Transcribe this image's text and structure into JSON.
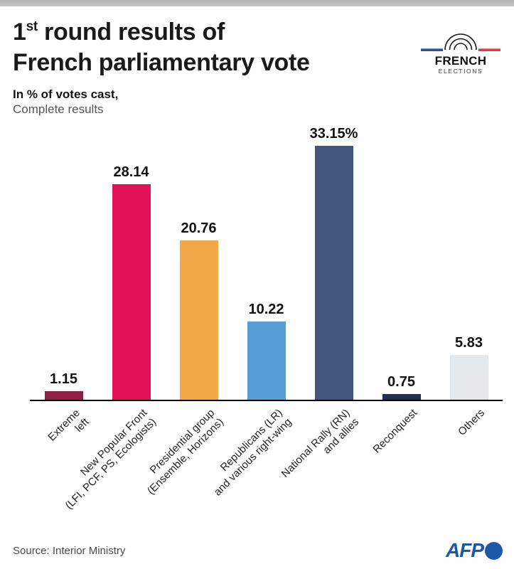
{
  "page": {
    "background": "#ffffff",
    "top_strip_color": "#b9b9b9"
  },
  "header": {
    "title_number": "1",
    "title_ordinal_suffix": "st",
    "title_line1_rest": " round results of",
    "title_line2": "French parliamentary vote",
    "subtitle_bold": "In % of votes cast,",
    "subtitle_regular": "Complete results"
  },
  "logo": {
    "line1": "FRENCH",
    "line2": "ELECTIONS",
    "arc_color": "#1a1a1a",
    "flag_blue": "#2d4f9e",
    "flag_red": "#e0394a"
  },
  "chart_data": {
    "type": "bar",
    "title": "1st round results of French parliamentary vote",
    "subtitle": "In % of votes cast, Complete results",
    "xlabel": "",
    "ylabel": "% of votes cast",
    "ylim": [
      0,
      35
    ],
    "grid": false,
    "legend": "none",
    "categories": [
      "Extreme left",
      "New Popular Front (LFI, PCF, PS, Ecologists)",
      "Presidential group (Ensemble, Horizons)",
      "Republicans (LR) and various right-wing",
      "National Rally (RN) and allies",
      "Reconquest",
      "Others"
    ],
    "category_lines": [
      [
        "Extreme",
        "left"
      ],
      [
        "New Popular Front",
        "(LFI, PCF, PS, Ecologists)"
      ],
      [
        "Presidential group",
        "(Ensemble, Horizons)"
      ],
      [
        "Republicans (LR)",
        "and various right-wing"
      ],
      [
        "National Rally (RN)",
        "and allies"
      ],
      [
        "Reconquest"
      ],
      [
        "Others"
      ]
    ],
    "values": [
      1.15,
      28.14,
      20.76,
      10.22,
      33.15,
      0.75,
      5.83
    ],
    "value_labels": [
      "1.15",
      "28.14",
      "20.76",
      "10.22",
      "33.15%",
      "0.75",
      "5.83"
    ],
    "bar_colors": [
      "#8e2143",
      "#e31157",
      "#f2a748",
      "#559fd6",
      "#41567c",
      "#242e52",
      "#e4e8ea"
    ],
    "value_label_color": "#121212",
    "axis_line_color": "#000000"
  },
  "footer": {
    "source": "Source: Interior Ministry",
    "brand": "AFP",
    "brand_color": "#1d57a8"
  }
}
